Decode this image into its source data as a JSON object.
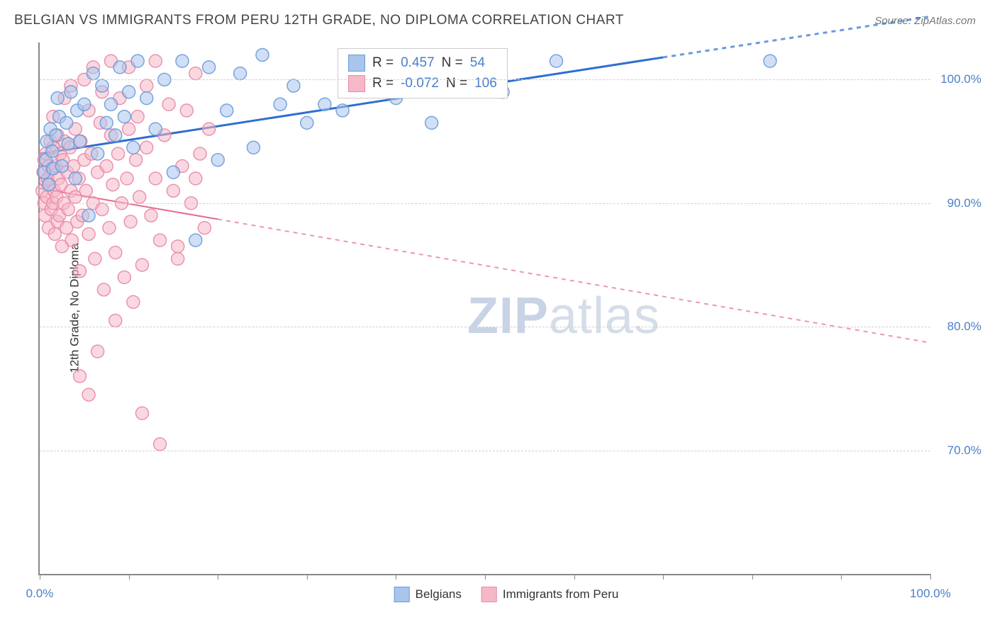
{
  "header": {
    "title": "BELGIAN VS IMMIGRANTS FROM PERU 12TH GRADE, NO DIPLOMA CORRELATION CHART",
    "source": "Source: ZipAtlas.com"
  },
  "chart": {
    "type": "scatter",
    "y_axis_label": "12th Grade, No Diploma",
    "background_color": "#ffffff",
    "grid_color": "#d0d0d0",
    "axis_color": "#888888",
    "text_color": "#333333",
    "value_color": "#4a7fc8",
    "title_fontsize": 19,
    "label_fontsize": 17,
    "x_range_pct": [
      0,
      100
    ],
    "y_range_pct": [
      60,
      103
    ],
    "x_ticks_pct": [
      0,
      10,
      20,
      30,
      40,
      50,
      60,
      70,
      80,
      90,
      100
    ],
    "x_tick_labels": {
      "0": "0.0%",
      "100": "100.0%"
    },
    "y_gridlines_pct": [
      70,
      80,
      90,
      100
    ],
    "y_tick_labels": {
      "70": "70.0%",
      "80": "80.0%",
      "90": "90.0%",
      "100": "100.0%"
    },
    "watermark": {
      "zip": "ZIP",
      "atlas": "atlas",
      "color": "#d5dde8"
    },
    "series": {
      "belgians": {
        "label": "Belgians",
        "fill_color": "#a9c5ec",
        "stroke_color": "#6a9bd8",
        "fill_opacity": 0.55,
        "stroke_opacity": 0.9,
        "marker_radius": 9,
        "R": "0.457",
        "N": "54",
        "regression": {
          "color": "#2e6fd0",
          "width": 3,
          "dash_solid_x_pct": [
            0,
            70
          ],
          "y_at_x_pct": {
            "0": 94.0,
            "70": 101.8,
            "100": 105.1
          }
        },
        "points_pct": [
          [
            0.5,
            92.5
          ],
          [
            0.7,
            93.5
          ],
          [
            0.8,
            95.0
          ],
          [
            1.0,
            91.5
          ],
          [
            1.2,
            96.0
          ],
          [
            1.4,
            94.2
          ],
          [
            1.5,
            92.8
          ],
          [
            1.8,
            95.5
          ],
          [
            2.0,
            98.5
          ],
          [
            2.2,
            97.0
          ],
          [
            2.5,
            93.0
          ],
          [
            3.0,
            96.5
          ],
          [
            3.2,
            94.8
          ],
          [
            3.5,
            99.0
          ],
          [
            4.0,
            92.0
          ],
          [
            4.2,
            97.5
          ],
          [
            4.5,
            95.0
          ],
          [
            5.0,
            98.0
          ],
          [
            5.5,
            89.0
          ],
          [
            6.0,
            100.5
          ],
          [
            6.5,
            94.0
          ],
          [
            7.0,
            99.5
          ],
          [
            7.5,
            96.5
          ],
          [
            8.0,
            98.0
          ],
          [
            8.5,
            95.5
          ],
          [
            9.0,
            101.0
          ],
          [
            9.5,
            97.0
          ],
          [
            10.0,
            99.0
          ],
          [
            10.5,
            94.5
          ],
          [
            11.0,
            101.5
          ],
          [
            12.0,
            98.5
          ],
          [
            13.0,
            96.0
          ],
          [
            14.0,
            100.0
          ],
          [
            15.0,
            92.5
          ],
          [
            16.0,
            101.5
          ],
          [
            17.5,
            87.0
          ],
          [
            19.0,
            101.0
          ],
          [
            20.0,
            93.5
          ],
          [
            21.0,
            97.5
          ],
          [
            22.5,
            100.5
          ],
          [
            24.0,
            94.5
          ],
          [
            25.0,
            102.0
          ],
          [
            27.0,
            98.0
          ],
          [
            28.5,
            99.5
          ],
          [
            30.0,
            96.5
          ],
          [
            32.0,
            98.0
          ],
          [
            34.0,
            97.5
          ],
          [
            36.0,
            99.5
          ],
          [
            40.0,
            98.5
          ],
          [
            44.0,
            96.5
          ],
          [
            48.0,
            101.0
          ],
          [
            52.0,
            99.0
          ],
          [
            58.0,
            101.5
          ],
          [
            82.0,
            101.5
          ]
        ]
      },
      "peru": {
        "label": "Immigrants from Peru",
        "fill_color": "#f6b8c8",
        "stroke_color": "#e98aa5",
        "fill_opacity": 0.55,
        "stroke_opacity": 0.9,
        "marker_radius": 9,
        "R": "-0.072",
        "N": "106",
        "regression": {
          "color": "#e66a8f",
          "width": 2,
          "dash_solid_x_pct": [
            0,
            20
          ],
          "y_at_x_pct": {
            "0": 91.2,
            "20": 88.7,
            "100": 78.7
          }
        },
        "points_pct": [
          [
            0.3,
            91.0
          ],
          [
            0.4,
            92.5
          ],
          [
            0.5,
            90.0
          ],
          [
            0.5,
            93.5
          ],
          [
            0.6,
            89.0
          ],
          [
            0.7,
            91.8
          ],
          [
            0.7,
            94.0
          ],
          [
            0.8,
            90.5
          ],
          [
            0.9,
            92.0
          ],
          [
            1.0,
            88.0
          ],
          [
            1.0,
            93.0
          ],
          [
            1.1,
            91.5
          ],
          [
            1.2,
            95.0
          ],
          [
            1.3,
            89.5
          ],
          [
            1.4,
            92.8
          ],
          [
            1.5,
            90.0
          ],
          [
            1.5,
            94.5
          ],
          [
            1.6,
            91.0
          ],
          [
            1.7,
            87.5
          ],
          [
            1.8,
            93.0
          ],
          [
            1.9,
            90.5
          ],
          [
            2.0,
            95.5
          ],
          [
            2.0,
            88.5
          ],
          [
            2.1,
            92.0
          ],
          [
            2.2,
            89.0
          ],
          [
            2.3,
            94.0
          ],
          [
            2.4,
            91.5
          ],
          [
            2.5,
            86.5
          ],
          [
            2.6,
            93.5
          ],
          [
            2.7,
            90.0
          ],
          [
            2.8,
            95.0
          ],
          [
            3.0,
            88.0
          ],
          [
            3.1,
            92.5
          ],
          [
            3.2,
            89.5
          ],
          [
            3.4,
            94.5
          ],
          [
            3.5,
            91.0
          ],
          [
            3.6,
            87.0
          ],
          [
            3.8,
            93.0
          ],
          [
            4.0,
            90.5
          ],
          [
            4.0,
            96.0
          ],
          [
            4.2,
            88.5
          ],
          [
            4.4,
            92.0
          ],
          [
            4.5,
            84.5
          ],
          [
            4.6,
            95.0
          ],
          [
            4.8,
            89.0
          ],
          [
            5.0,
            93.5
          ],
          [
            5.0,
            100.0
          ],
          [
            5.2,
            91.0
          ],
          [
            5.5,
            87.5
          ],
          [
            5.5,
            97.5
          ],
          [
            5.8,
            94.0
          ],
          [
            6.0,
            90.0
          ],
          [
            6.0,
            101.0
          ],
          [
            6.2,
            85.5
          ],
          [
            6.5,
            92.5
          ],
          [
            6.8,
            96.5
          ],
          [
            7.0,
            89.5
          ],
          [
            7.0,
            99.0
          ],
          [
            7.2,
            83.0
          ],
          [
            7.5,
            93.0
          ],
          [
            7.8,
            88.0
          ],
          [
            8.0,
            95.5
          ],
          [
            8.0,
            101.5
          ],
          [
            8.2,
            91.5
          ],
          [
            8.5,
            86.0
          ],
          [
            8.8,
            94.0
          ],
          [
            9.0,
            98.5
          ],
          [
            9.2,
            90.0
          ],
          [
            9.5,
            84.0
          ],
          [
            9.8,
            92.0
          ],
          [
            10.0,
            96.0
          ],
          [
            10.0,
            101.0
          ],
          [
            10.2,
            88.5
          ],
          [
            10.5,
            82.0
          ],
          [
            10.8,
            93.5
          ],
          [
            11.0,
            97.0
          ],
          [
            11.2,
            90.5
          ],
          [
            11.5,
            85.0
          ],
          [
            12.0,
            94.5
          ],
          [
            12.0,
            99.5
          ],
          [
            12.5,
            89.0
          ],
          [
            13.0,
            92.0
          ],
          [
            13.0,
            101.5
          ],
          [
            13.5,
            87.0
          ],
          [
            14.0,
            95.5
          ],
          [
            14.5,
            98.0
          ],
          [
            15.0,
            91.0
          ],
          [
            15.5,
            85.5
          ],
          [
            16.0,
            93.0
          ],
          [
            16.5,
            97.5
          ],
          [
            17.0,
            90.0
          ],
          [
            17.5,
            100.5
          ],
          [
            18.0,
            94.0
          ],
          [
            18.5,
            88.0
          ],
          [
            19.0,
            96.0
          ],
          [
            1.5,
            97.0
          ],
          [
            2.8,
            98.5
          ],
          [
            3.5,
            99.5
          ],
          [
            4.5,
            76.0
          ],
          [
            5.5,
            74.5
          ],
          [
            6.5,
            78.0
          ],
          [
            8.5,
            80.5
          ],
          [
            11.5,
            73.0
          ],
          [
            13.5,
            70.5
          ],
          [
            15.5,
            86.5
          ],
          [
            17.5,
            92.0
          ]
        ]
      }
    }
  },
  "legend_labels": {
    "r_label": "R =",
    "n_label": "N ="
  }
}
